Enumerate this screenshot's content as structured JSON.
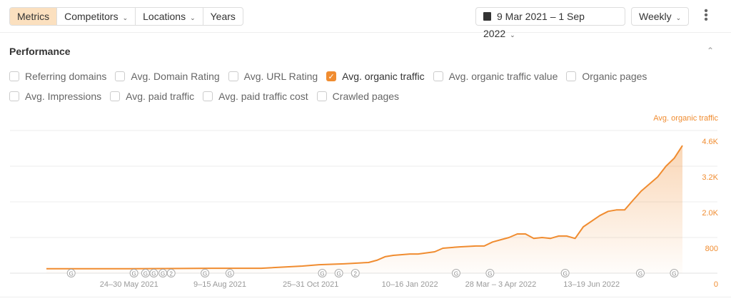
{
  "toolbar": {
    "tabs": [
      {
        "label": "Metrics",
        "active": true
      },
      {
        "label": "Competitors",
        "dropdown": true
      },
      {
        "label": "Locations",
        "dropdown": true
      },
      {
        "label": "Years"
      }
    ],
    "date_range": "9 Mar 2021 – 1 Sep 2022",
    "interval": "Weekly",
    "calendar_icon": "calendar-icon",
    "more_icon": "kebab-icon"
  },
  "section": {
    "title": "Performance"
  },
  "metrics": [
    [
      {
        "label": "Referring domains",
        "checked": false
      },
      {
        "label": "Avg. Domain Rating",
        "checked": false
      },
      {
        "label": "Avg. URL Rating",
        "checked": false
      },
      {
        "label": "Avg. organic traffic",
        "checked": true
      },
      {
        "label": "Avg. organic traffic value",
        "checked": false
      },
      {
        "label": "Organic pages",
        "checked": false
      }
    ],
    [
      {
        "label": "Avg. Impressions",
        "checked": false
      },
      {
        "label": "Avg. paid traffic",
        "checked": false
      },
      {
        "label": "Avg. paid traffic cost",
        "checked": false
      },
      {
        "label": "Crawled pages",
        "checked": false
      }
    ]
  ],
  "colors": {
    "accent": "#f08c30",
    "active_tab": "#fbe0bf"
  },
  "chart_data": {
    "type": "area",
    "series_name": "Avg. organic traffic",
    "y_ticks": [
      {
        "label": "0",
        "value": 0
      },
      {
        "label": "800",
        "value": 800
      },
      {
        "label": "2.0K",
        "value": 2000
      },
      {
        "label": "3.2K",
        "value": 3200
      },
      {
        "label": "4.6K",
        "value": 4600
      }
    ],
    "x_ticks": [
      {
        "label": "24–30 May 2021",
        "week": 10
      },
      {
        "label": "9–15 Aug 2021",
        "week": 21
      },
      {
        "label": "25–31 Oct 2021",
        "week": 32
      },
      {
        "label": "10–16 Jan 2022",
        "week": 44
      },
      {
        "label": "28 Mar – 3 Apr 2022",
        "week": 55
      },
      {
        "label": "13–19 Jun 2022",
        "week": 66
      }
    ],
    "week_range": [
      0,
      77
    ],
    "points": [
      [
        0,
        100
      ],
      [
        10,
        100
      ],
      [
        20,
        110
      ],
      [
        26,
        110
      ],
      [
        31,
        160
      ],
      [
        33,
        190
      ],
      [
        36,
        210
      ],
      [
        38,
        230
      ],
      [
        39,
        240
      ],
      [
        40,
        290
      ],
      [
        41,
        370
      ],
      [
        42,
        400
      ],
      [
        44,
        430
      ],
      [
        45,
        430
      ],
      [
        47,
        480
      ],
      [
        48,
        560
      ],
      [
        50,
        590
      ],
      [
        52,
        610
      ],
      [
        53,
        610
      ],
      [
        54,
        700
      ],
      [
        55,
        750
      ],
      [
        56,
        800
      ],
      [
        57,
        920
      ],
      [
        58,
        920
      ],
      [
        59,
        780
      ],
      [
        60,
        800
      ],
      [
        61,
        780
      ],
      [
        62,
        850
      ],
      [
        63,
        850
      ],
      [
        64,
        780
      ],
      [
        65,
        1160
      ],
      [
        67,
        1540
      ],
      [
        68,
        1680
      ],
      [
        69,
        1730
      ],
      [
        70,
        1730
      ],
      [
        71,
        2050
      ],
      [
        72,
        2360
      ],
      [
        74,
        2840
      ],
      [
        75,
        3200
      ],
      [
        76,
        3510
      ],
      [
        77,
        4010
      ]
    ],
    "events": [
      {
        "week": 3,
        "label": "G"
      },
      {
        "week": 10.6,
        "label": "G"
      },
      {
        "week": 12,
        "label": "G"
      },
      {
        "week": 13,
        "label": "G"
      },
      {
        "week": 14.1,
        "label": "G"
      },
      {
        "week": 15.1,
        "label": "2"
      },
      {
        "week": 19.2,
        "label": "G"
      },
      {
        "week": 22.2,
        "label": "G"
      },
      {
        "week": 33.4,
        "label": "G"
      },
      {
        "week": 35.4,
        "label": "G"
      },
      {
        "week": 37.4,
        "label": "2"
      },
      {
        "week": 49.6,
        "label": "G"
      },
      {
        "week": 53.7,
        "label": "G"
      },
      {
        "week": 62.8,
        "label": "G"
      },
      {
        "week": 71.9,
        "label": "G"
      },
      {
        "week": 76,
        "label": "G"
      }
    ]
  }
}
